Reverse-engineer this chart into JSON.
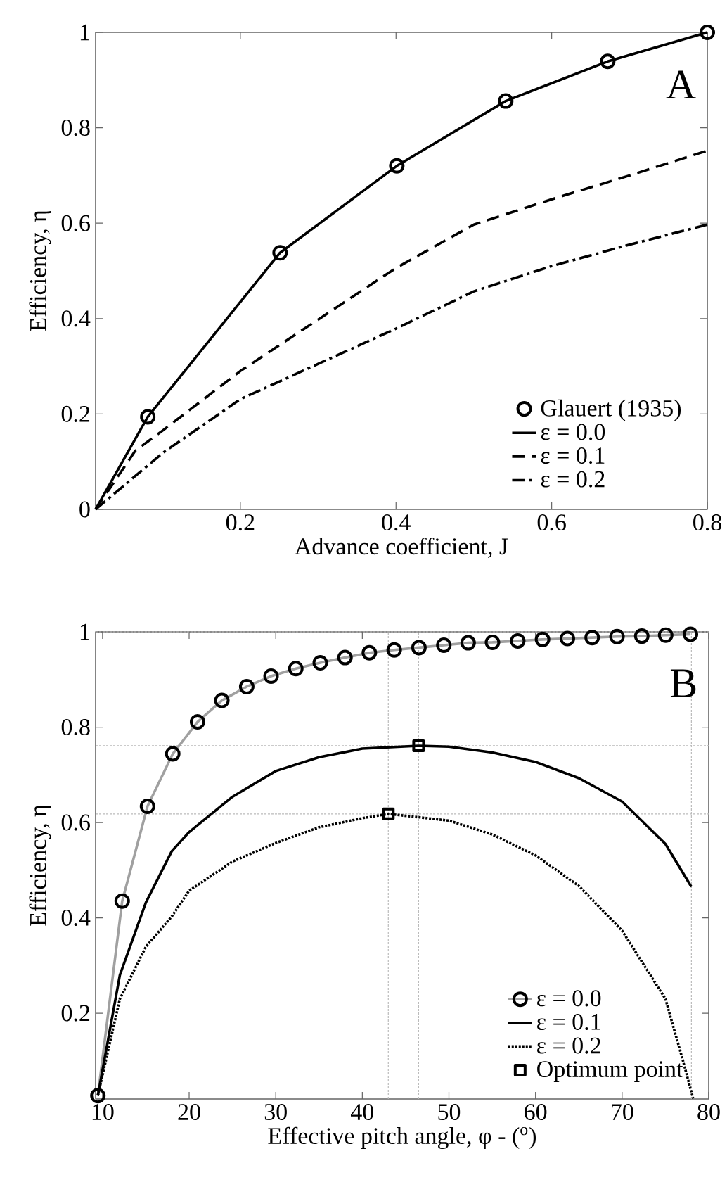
{
  "chart_data": [
    {
      "type": "line",
      "xlabel": "Advance coefficient, J",
      "ylabel": "Efficiency, η",
      "annotations": [
        "A"
      ],
      "xlim": [
        0.014,
        0.8
      ],
      "ylim": [
        0,
        1
      ],
      "xticks": [
        0.2,
        0.4,
        0.6,
        0.8
      ],
      "yticks": [
        0,
        0.2,
        0.4,
        0.6,
        0.8,
        1
      ],
      "grid": false,
      "legend": "bottom right",
      "series": [
        {
          "name": "Glauert (1935)",
          "type": "scatter",
          "marker": "circle",
          "color": "#000000",
          "x": [
            0.081,
            0.251,
            0.401,
            0.541,
            0.672,
            0.8
          ],
          "values": [
            0.194,
            0.538,
            0.72,
            0.856,
            0.939,
            1.0
          ]
        },
        {
          "name": "ε = 0.0",
          "type": "line",
          "line_style": "solid",
          "color": "#000000",
          "x": [
            0.014,
            0.081,
            0.251,
            0.401,
            0.541,
            0.672,
            0.8
          ],
          "values": [
            0,
            0.194,
            0.538,
            0.72,
            0.856,
            0.939,
            1.0
          ]
        },
        {
          "name": "ε = 0.1",
          "type": "line",
          "line_style": "dashed",
          "color": "#000000",
          "x": [
            0.014,
            0.065,
            0.1,
            0.2,
            0.3,
            0.4,
            0.5,
            0.6,
            0.7,
            0.8
          ],
          "values": [
            0,
            0.123,
            0.165,
            0.29,
            0.398,
            0.506,
            0.597,
            0.65,
            0.7,
            0.752
          ]
        },
        {
          "name": "ε = 0.2",
          "type": "line",
          "line_style": "dashdot",
          "color": "#000000",
          "x": [
            0.014,
            0.1,
            0.2,
            0.3,
            0.4,
            0.5,
            0.6,
            0.7,
            0.8
          ],
          "values": [
            0,
            0.118,
            0.231,
            0.305,
            0.379,
            0.457,
            0.51,
            0.555,
            0.597
          ]
        }
      ]
    },
    {
      "type": "line",
      "xlabel": "Effective pitch angle, φ - ($^{o}$)",
      "ylabel": "Efficiency, η",
      "annotations": [
        "B"
      ],
      "xlim": [
        9.2,
        80
      ],
      "ylim": [
        0.02,
        1
      ],
      "xticks": [
        10,
        20,
        30,
        40,
        50,
        60,
        70,
        80
      ],
      "yticks": [
        0.2,
        0.4,
        0.6,
        0.8,
        1
      ],
      "grid": false,
      "legend": "bottom right",
      "ref_lines": [
        {
          "axis": "y",
          "value": 1,
          "color": "#bbbbbb",
          "line_style": "dotted"
        },
        {
          "axis": "y",
          "value": 0.761,
          "color": "#bbbbbb",
          "line_style": "dotted"
        },
        {
          "axis": "y",
          "value": 0.618,
          "color": "#bbbbbb",
          "line_style": "dotted"
        },
        {
          "axis": "x",
          "value": 46.5,
          "color": "#bbbbbb",
          "line_style": "dotted"
        },
        {
          "axis": "x",
          "value": 43,
          "color": "#bbbbbb",
          "line_style": "dotted"
        },
        {
          "axis": "x",
          "value": 78,
          "color": "#bbbbbb",
          "line_style": "dotted"
        }
      ],
      "series": [
        {
          "name": "ε = 0.0",
          "type": "line",
          "marker": "circle",
          "line_style": "solid",
          "color": "#a0a0a0",
          "x": [
            9.46,
            12.27,
            15.19,
            18.11,
            20.97,
            23.78,
            26.65,
            29.46,
            32.32,
            35.14,
            38.0,
            40.81,
            43.68,
            46.54,
            49.41,
            52.22,
            55.03,
            57.95,
            60.81,
            63.68,
            66.54,
            69.41,
            72.27,
            75.03,
            77.89
          ],
          "values": [
            0.027,
            0.435,
            0.634,
            0.744,
            0.811,
            0.856,
            0.885,
            0.907,
            0.923,
            0.935,
            0.946,
            0.956,
            0.962,
            0.967,
            0.972,
            0.977,
            0.978,
            0.981,
            0.984,
            0.986,
            0.988,
            0.99,
            0.991,
            0.993,
            0.995
          ]
        },
        {
          "name": "ε = 0.1",
          "type": "line",
          "line_style": "solid",
          "color": "#000000",
          "x": [
            9.46,
            12,
            15,
            18,
            20,
            25,
            30,
            35,
            40,
            46.5,
            50,
            55,
            60,
            65,
            70,
            75,
            78
          ],
          "values": [
            0.027,
            0.28,
            0.432,
            0.54,
            0.58,
            0.654,
            0.708,
            0.737,
            0.755,
            0.761,
            0.759,
            0.747,
            0.727,
            0.693,
            0.644,
            0.555,
            0.465
          ]
        },
        {
          "name": "ε = 0.2",
          "type": "line",
          "line_style": "dotted",
          "color": "#000000",
          "x": [
            9.46,
            12,
            15,
            18,
            20,
            25,
            30,
            35,
            40,
            43,
            50,
            55,
            60,
            65,
            70,
            75,
            77,
            78.2
          ],
          "values": [
            0.027,
            0.23,
            0.339,
            0.403,
            0.457,
            0.518,
            0.557,
            0.59,
            0.609,
            0.618,
            0.604,
            0.575,
            0.531,
            0.467,
            0.373,
            0.23,
            0.102,
            0.021
          ]
        },
        {
          "name": "Optimum point",
          "type": "scatter",
          "marker": "square",
          "color": "#000000",
          "x": [
            46.5,
            43
          ],
          "values": [
            0.761,
            0.618
          ]
        }
      ]
    }
  ]
}
